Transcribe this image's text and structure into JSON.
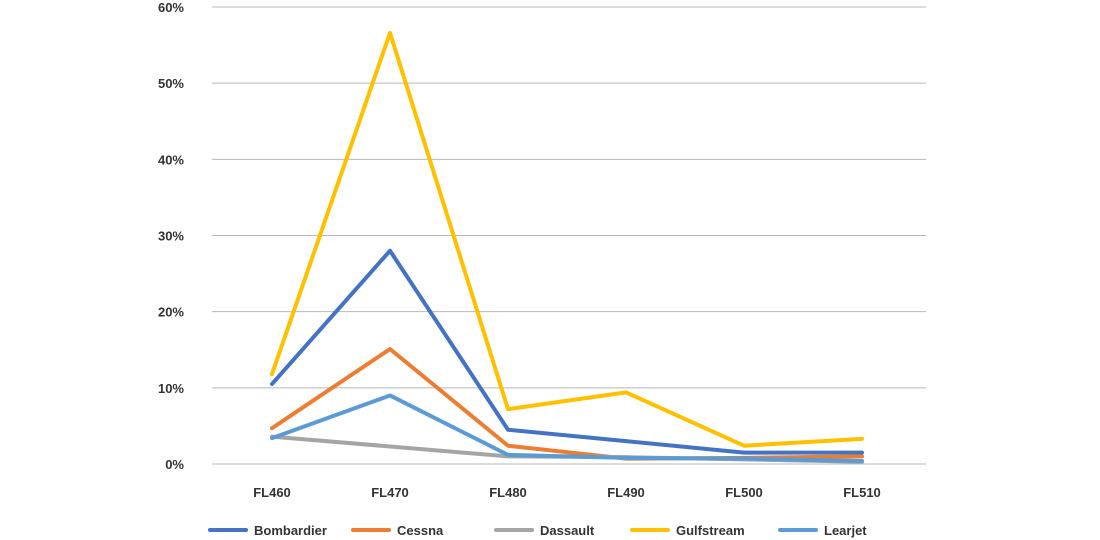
{
  "chart_data": {
    "type": "line",
    "title": "",
    "xlabel": "",
    "ylabel": "",
    "categories": [
      "FL460",
      "FL470",
      "FL480",
      "FL490",
      "FL500",
      "FL510"
    ],
    "ylim": [
      0,
      60
    ],
    "yticks": [
      "0%",
      "10%",
      "20%",
      "30%",
      "40%",
      "50%",
      "60%"
    ],
    "grid": true,
    "legend": "bottom",
    "series": [
      {
        "name": "Bombardier",
        "color": "#4472C4",
        "values": [
          10.5,
          28.0,
          4.5,
          3.0,
          1.5,
          1.5
        ]
      },
      {
        "name": "Cessna",
        "color": "#ED7D31",
        "values": [
          4.7,
          15.1,
          2.4,
          0.7,
          0.8,
          1.0
        ]
      },
      {
        "name": "Dassault",
        "color": "#A5A5A5",
        "values": [
          3.6,
          2.3,
          1.0,
          0.9,
          0.6,
          0.3
        ]
      },
      {
        "name": "Gulfstream",
        "color": "#FFC000",
        "values": [
          11.8,
          56.6,
          7.2,
          9.4,
          2.4,
          3.3
        ]
      },
      {
        "name": "Learjet",
        "color": "#5B9BD5",
        "values": [
          3.4,
          9.0,
          1.2,
          0.8,
          0.7,
          0.4
        ]
      }
    ]
  }
}
